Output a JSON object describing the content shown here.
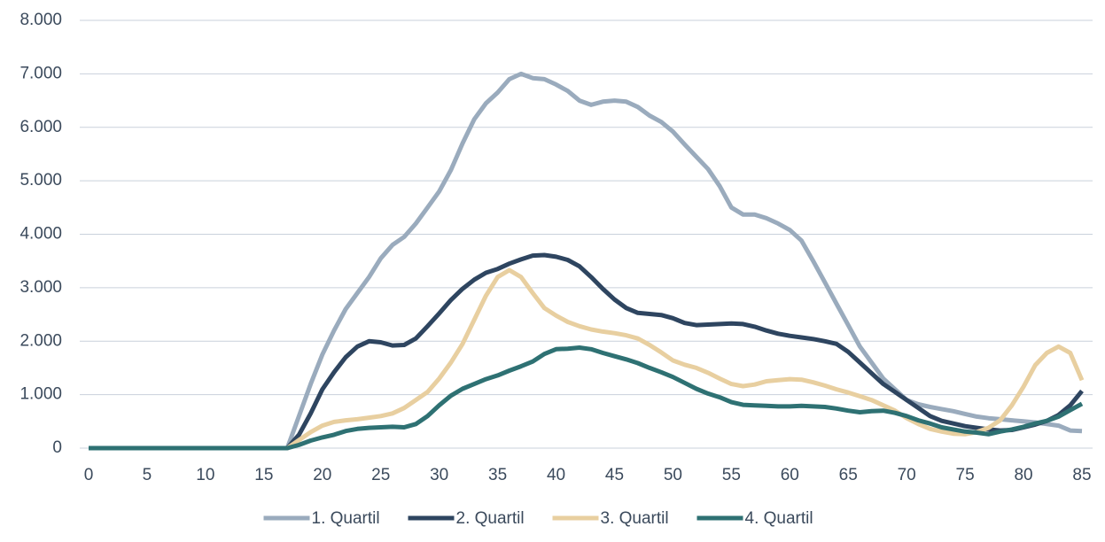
{
  "chart_data": {
    "type": "line",
    "x": [
      0,
      1,
      2,
      3,
      4,
      5,
      6,
      7,
      8,
      9,
      10,
      11,
      12,
      13,
      14,
      15,
      16,
      17,
      18,
      19,
      20,
      21,
      22,
      23,
      24,
      25,
      26,
      27,
      28,
      29,
      30,
      31,
      32,
      33,
      34,
      35,
      36,
      37,
      38,
      39,
      40,
      41,
      42,
      43,
      44,
      45,
      46,
      47,
      48,
      49,
      50,
      51,
      52,
      53,
      54,
      55,
      56,
      57,
      58,
      59,
      60,
      61,
      62,
      63,
      64,
      65,
      66,
      67,
      68,
      69,
      70,
      71,
      72,
      73,
      74,
      75,
      76,
      77,
      78,
      79,
      80,
      81,
      82,
      83,
      84,
      85
    ],
    "series": [
      {
        "name": "1. Quartil",
        "color": "#9aabbd",
        "values": [
          0,
          0,
          0,
          0,
          0,
          0,
          0,
          0,
          0,
          0,
          0,
          0,
          0,
          0,
          0,
          0,
          0,
          0,
          600,
          1200,
          1750,
          2200,
          2600,
          2900,
          3200,
          3550,
          3800,
          3950,
          4200,
          4500,
          4800,
          5200,
          5700,
          6150,
          6450,
          6650,
          6900,
          7000,
          6920,
          6900,
          6800,
          6680,
          6500,
          6420,
          6480,
          6500,
          6480,
          6380,
          6220,
          6100,
          5920,
          5680,
          5450,
          5220,
          4900,
          4500,
          4370,
          4370,
          4300,
          4200,
          4080,
          3880,
          3500,
          3100,
          2700,
          2300,
          1900,
          1600,
          1300,
          1100,
          900,
          820,
          770,
          730,
          690,
          640,
          590,
          560,
          540,
          520,
          500,
          480,
          450,
          420,
          330,
          320
        ]
      },
      {
        "name": "2. Quartil",
        "color": "#2e4560",
        "values": [
          0,
          0,
          0,
          0,
          0,
          0,
          0,
          0,
          0,
          0,
          0,
          0,
          0,
          0,
          0,
          0,
          0,
          0,
          250,
          650,
          1100,
          1420,
          1700,
          1900,
          2000,
          1980,
          1920,
          1930,
          2050,
          2280,
          2520,
          2770,
          2980,
          3150,
          3280,
          3350,
          3450,
          3530,
          3600,
          3610,
          3580,
          3520,
          3400,
          3200,
          2980,
          2780,
          2620,
          2530,
          2510,
          2490,
          2430,
          2340,
          2300,
          2310,
          2320,
          2330,
          2320,
          2270,
          2200,
          2140,
          2100,
          2070,
          2040,
          2000,
          1950,
          1800,
          1600,
          1400,
          1200,
          1050,
          900,
          750,
          600,
          510,
          460,
          410,
          380,
          350,
          330,
          340,
          390,
          440,
          510,
          620,
          800,
          1070
        ]
      },
      {
        "name": "3. Quartil",
        "color": "#e8cfa0",
        "values": [
          0,
          0,
          0,
          0,
          0,
          0,
          0,
          0,
          0,
          0,
          0,
          0,
          0,
          0,
          0,
          0,
          0,
          0,
          150,
          300,
          420,
          490,
          520,
          540,
          570,
          600,
          650,
          750,
          900,
          1050,
          1300,
          1600,
          1950,
          2400,
          2850,
          3200,
          3330,
          3200,
          2900,
          2620,
          2480,
          2360,
          2280,
          2220,
          2180,
          2150,
          2110,
          2050,
          1930,
          1790,
          1640,
          1560,
          1500,
          1410,
          1300,
          1200,
          1160,
          1190,
          1250,
          1270,
          1290,
          1280,
          1230,
          1170,
          1100,
          1040,
          970,
          900,
          800,
          700,
          560,
          450,
          360,
          310,
          270,
          260,
          300,
          380,
          520,
          800,
          1150,
          1550,
          1780,
          1900,
          1780,
          1270
        ]
      },
      {
        "name": "4. Quartil",
        "color": "#2e7173",
        "values": [
          0,
          0,
          0,
          0,
          0,
          0,
          0,
          0,
          0,
          0,
          0,
          0,
          0,
          0,
          0,
          0,
          0,
          0,
          60,
          140,
          200,
          250,
          320,
          360,
          380,
          390,
          400,
          390,
          450,
          600,
          800,
          980,
          1110,
          1200,
          1290,
          1360,
          1450,
          1530,
          1620,
          1760,
          1850,
          1860,
          1880,
          1850,
          1780,
          1720,
          1660,
          1590,
          1500,
          1420,
          1330,
          1220,
          1110,
          1020,
          950,
          860,
          810,
          800,
          790,
          780,
          780,
          790,
          780,
          770,
          740,
          700,
          670,
          690,
          700,
          660,
          600,
          520,
          460,
          390,
          350,
          310,
          290,
          260,
          310,
          350,
          400,
          460,
          510,
          590,
          710,
          830
        ]
      }
    ],
    "xlim": [
      0,
      85
    ],
    "xticks": [
      0,
      5,
      10,
      15,
      20,
      25,
      30,
      35,
      40,
      45,
      50,
      55,
      60,
      65,
      70,
      75,
      80,
      85
    ],
    "ylim": [
      0,
      8000
    ],
    "yticks": [
      0,
      {
        "value": 1000,
        "label": "1.000"
      },
      {
        "value": 2000,
        "label": "2.000"
      },
      {
        "value": 3000,
        "label": "3.000"
      },
      {
        "value": 4000,
        "label": "4.000"
      },
      {
        "value": 5000,
        "label": "5.000"
      },
      {
        "value": 6000,
        "label": "6.000"
      },
      {
        "value": 7000,
        "label": "7.000"
      },
      {
        "value": 8000,
        "label": "8.000"
      }
    ],
    "grid": true,
    "legend": "bottom"
  }
}
